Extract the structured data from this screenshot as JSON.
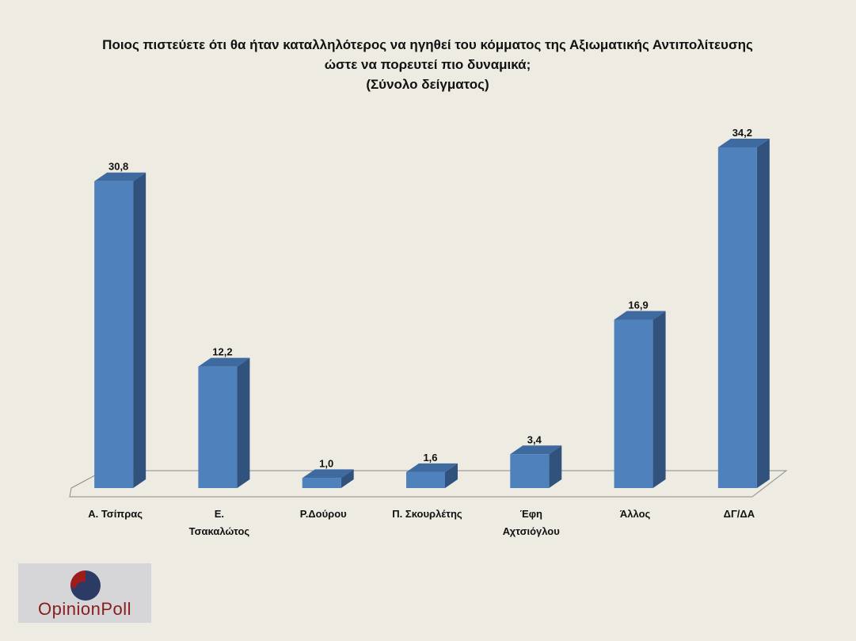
{
  "chart_data": {
    "type": "bar",
    "title": [
      "Ποιος πιστεύετε ότι θα ήταν καταλληλότερος  να ηγηθεί του κόμματος της Αξιωματικής Αντιπολίτευσης",
      "ώστε να πορευτεί πιο δυναμικά;",
      "(Σύνολο δείγματος)"
    ],
    "categories": [
      [
        "Α. Τσίπρας"
      ],
      [
        "Ε.",
        "Τσακαλώτος"
      ],
      [
        "Ρ.Δούρου"
      ],
      [
        "Π. Σκουρλέτης"
      ],
      [
        "Έφη",
        "Αχτσιόγλου"
      ],
      [
        "Άλλος"
      ],
      [
        "ΔΓ/ΔΑ"
      ]
    ],
    "values": [
      30.8,
      12.2,
      1.0,
      1.6,
      3.4,
      16.9,
      34.2
    ],
    "data_labels": [
      "30,8",
      "12,2",
      "1,0",
      "1,6",
      "3,4",
      "16,9",
      "34,2"
    ],
    "ylim": [
      0,
      35
    ],
    "grid": false,
    "colors": {
      "bar_front": "#4f81bd",
      "bar_side": "#31527c",
      "bar_top": "#3f6aa0"
    }
  },
  "logo": {
    "text": "OpinionPoll",
    "red": "#a01c1c",
    "navy": "#2c3a66"
  }
}
